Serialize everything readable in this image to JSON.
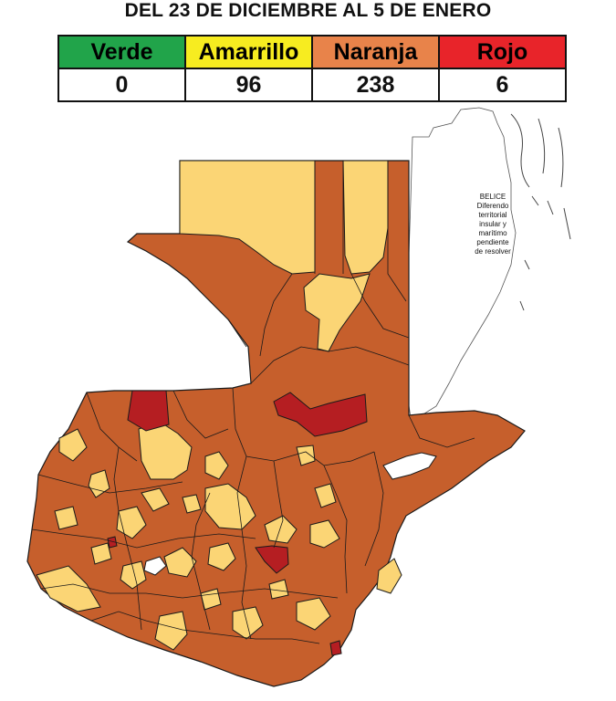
{
  "title": "DEL 23 DE DICIEMBRE AL 5 DE ENERO",
  "legend": [
    {
      "label": "Verde",
      "count": "0",
      "color": "#21a44a",
      "text_color": "#111111"
    },
    {
      "label": "Amarrillo",
      "count": "96",
      "color": "#f7ec20",
      "text_color": "#111111"
    },
    {
      "label": "Naranja",
      "count": "238",
      "color": "#e8834a",
      "text_color": "#111111"
    },
    {
      "label": "Rojo",
      "count": "6",
      "color": "#e8242a",
      "text_color": "#111111"
    }
  ],
  "map": {
    "fill_colors": {
      "naranja": "#c65f2c",
      "amarillo": "#fbd575",
      "rojo": "#b51e22",
      "outline": "#1a1a1a"
    },
    "belice_note": [
      "BELICE",
      "Diferendo",
      "territorial",
      "insular y",
      "marítimo",
      "pendiente",
      "de resolver"
    ]
  }
}
